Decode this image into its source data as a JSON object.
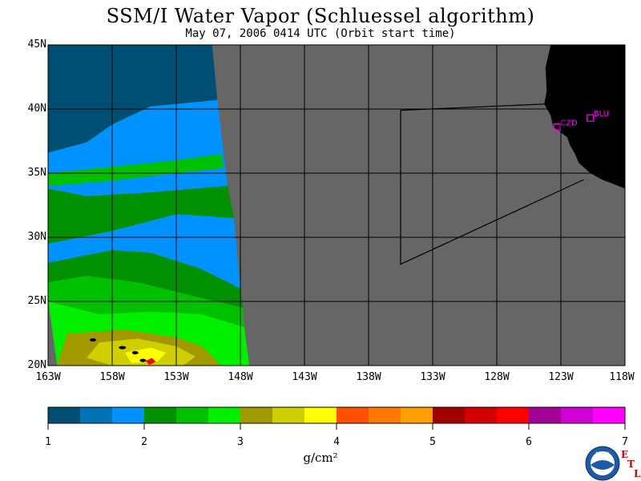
{
  "title": "SSM/I Water Vapor (Schluessel algorithm)",
  "subtitle": "May 07, 2006  0414 UTC  (Orbit start time)",
  "map": {
    "lat_labels": [
      "45N",
      "40N",
      "35N",
      "30N",
      "25N",
      "20N"
    ],
    "lon_labels": [
      "163W",
      "158W",
      "153W",
      "148W",
      "143W",
      "138W",
      "133W",
      "128W",
      "123W",
      "118W"
    ],
    "stations": [
      {
        "name": "CZD",
        "lon": -123.3,
        "lat": 38.6
      },
      {
        "name": "BLU",
        "lon": -120.7,
        "lat": 39.3
      }
    ],
    "colors": {
      "no_data": "#666666",
      "land": "#000000",
      "grid": "#000000",
      "station": "#ff00ff"
    }
  },
  "colorbar": {
    "ticks": [
      "1",
      "2",
      "3",
      "4",
      "5",
      "6",
      "7"
    ],
    "unit": "g/cm²",
    "colors": [
      "#004f72",
      "#0073b5",
      "#0093ff",
      "#009000",
      "#00c000",
      "#00f000",
      "#a29800",
      "#cfcf00",
      "#ffff00",
      "#ff5000",
      "#ff7800",
      "#ffa000",
      "#a20000",
      "#d20000",
      "#ff0000",
      "#a20096",
      "#d200d2",
      "#ff00ff"
    ]
  },
  "logo": {
    "text": "NOAA",
    "etl": [
      "E",
      "T",
      "L"
    ]
  }
}
